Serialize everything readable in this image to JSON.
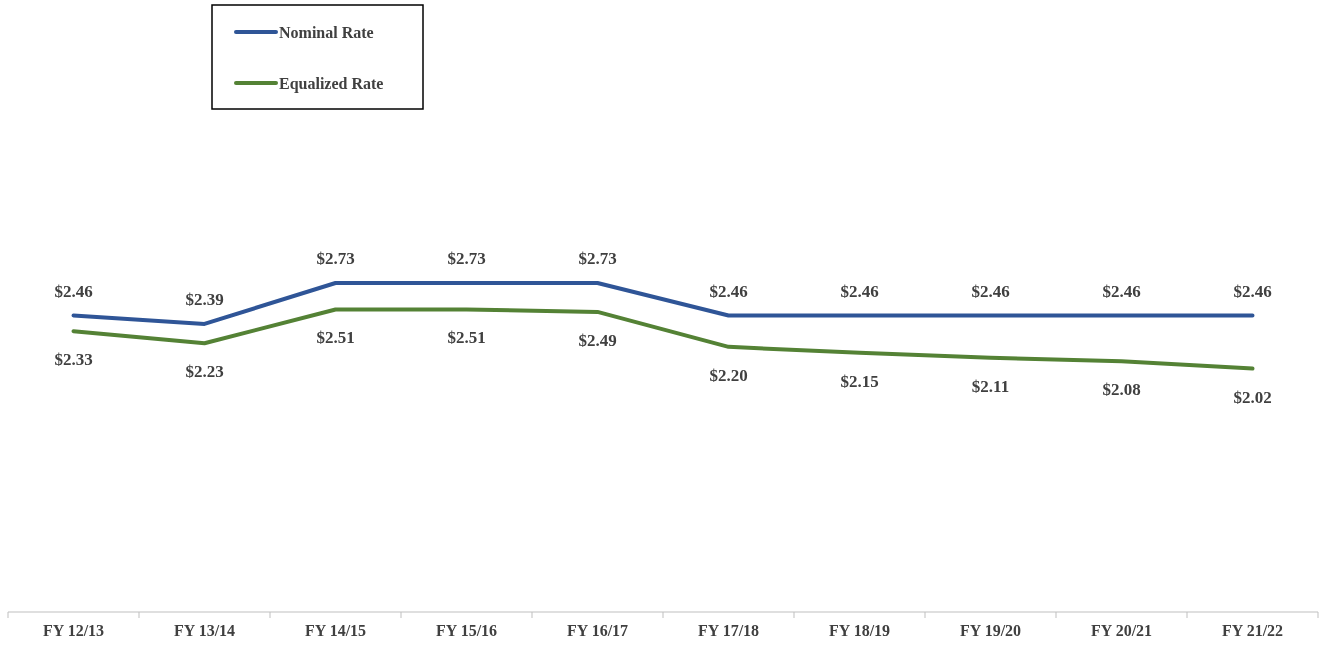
{
  "chart_data": {
    "type": "line",
    "categories": [
      "FY 12/13",
      "FY 13/14",
      "FY 14/15",
      "FY 15/16",
      "FY 16/17",
      "FY 17/18",
      "FY 18/19",
      "FY 19/20",
      "FY 20/21",
      "FY 21/22"
    ],
    "series": [
      {
        "name": "Nominal Rate",
        "color": "#2f5597",
        "values": [
          2.46,
          2.39,
          2.73,
          2.73,
          2.73,
          2.46,
          2.46,
          2.46,
          2.46,
          2.46
        ],
        "value_labels": [
          "$2.46",
          "$2.39",
          "$2.73",
          "$2.73",
          "$2.73",
          "$2.46",
          "$2.46",
          "$2.46",
          "$2.46",
          "$2.46"
        ]
      },
      {
        "name": "Equalized Rate",
        "color": "#548235",
        "values": [
          2.33,
          2.23,
          2.51,
          2.51,
          2.49,
          2.2,
          2.15,
          2.11,
          2.08,
          2.02
        ],
        "value_labels": [
          "$2.33",
          "$2.23",
          "$2.51",
          "$2.51",
          "$2.49",
          "$2.20",
          "$2.15",
          "$2.11",
          "$2.08",
          "$2.02"
        ]
      }
    ],
    "legend": "top left",
    "marker": "none",
    "line_style": "solid"
  }
}
